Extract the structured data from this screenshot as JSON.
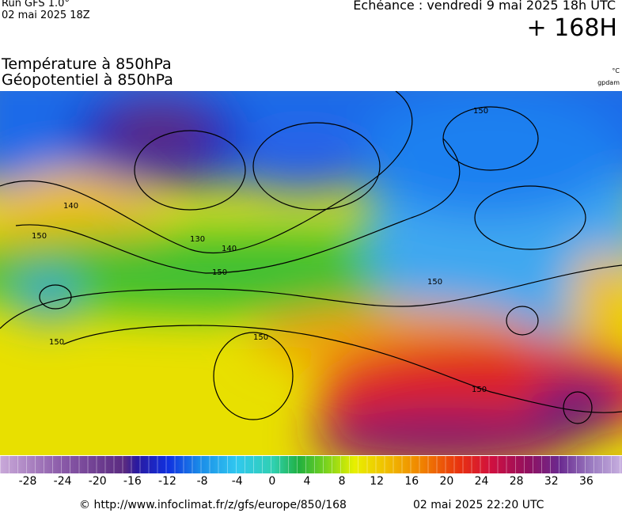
{
  "header": {
    "run": "Run GFS 1.0°",
    "run_date": "02 mai 2025 18Z",
    "echeance": "Echéance : vendredi 9 mai 2025 18h UTC",
    "lead": "+ 168H"
  },
  "title": {
    "line1": "Température à 850hPa",
    "line2": "Géopotentiel à 850hPa",
    "unit1": "°C",
    "unit2": "gpdam"
  },
  "map": {
    "contour_labels": [
      "140",
      "150",
      "130",
      "140",
      "150",
      "150",
      "150",
      "150",
      "150",
      "150"
    ]
  },
  "legend": {
    "ticks": [
      -28,
      -24,
      -20,
      -16,
      -12,
      -8,
      -4,
      0,
      4,
      8,
      12,
      16,
      20,
      24,
      28,
      32,
      36
    ]
  },
  "footer": {
    "url": "© http://www.infoclimat.fr/z/gfs/europe/850/168",
    "date": "02 mai 2025 22:20 UTC"
  }
}
